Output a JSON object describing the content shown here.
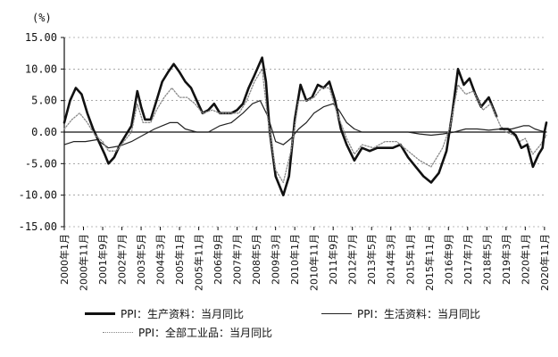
{
  "chart_data": {
    "type": "line",
    "unit_label": "(%)",
    "yticks": [
      "15.00",
      "10.00",
      "5.00",
      "0.00",
      "-5.00",
      "-10.00",
      "-15.00"
    ],
    "ylim": [
      -15,
      15
    ],
    "x_start": "2000-01",
    "x_end": "2020-12",
    "xticks": [
      {
        "label": "2000年1月",
        "date": "2000-01"
      },
      {
        "label": "2000年11月",
        "date": "2000-11"
      },
      {
        "label": "2001年9月",
        "date": "2001-09"
      },
      {
        "label": "2002年7月",
        "date": "2002-07"
      },
      {
        "label": "2003年5月",
        "date": "2003-05"
      },
      {
        "label": "2004年3月",
        "date": "2004-03"
      },
      {
        "label": "2005年1月",
        "date": "2005-01"
      },
      {
        "label": "2005年11月",
        "date": "2005-11"
      },
      {
        "label": "2006年9月",
        "date": "2006-09"
      },
      {
        "label": "2007年7月",
        "date": "2007-07"
      },
      {
        "label": "2008年5月",
        "date": "2008-05"
      },
      {
        "label": "2009年3月",
        "date": "2009-03"
      },
      {
        "label": "2010年1月",
        "date": "2010-01"
      },
      {
        "label": "2010年11月",
        "date": "2010-11"
      },
      {
        "label": "2011年9月",
        "date": "2011-09"
      },
      {
        "label": "2012年7月",
        "date": "2012-07"
      },
      {
        "label": "2013年5月",
        "date": "2013-05"
      },
      {
        "label": "2014年3月",
        "date": "2014-03"
      },
      {
        "label": "2015年1月",
        "date": "2015-01"
      },
      {
        "label": "2015年11月",
        "date": "2015-11"
      },
      {
        "label": "2016年9月",
        "date": "2016-09"
      },
      {
        "label": "2017年7月",
        "date": "2017-07"
      },
      {
        "label": "2018年5月",
        "date": "2018-05"
      },
      {
        "label": "2019年3月",
        "date": "2019-03"
      },
      {
        "label": "2020年1月",
        "date": "2020-01"
      },
      {
        "label": "2020年11月",
        "date": "2020-11"
      }
    ],
    "series": [
      {
        "name": "PPI：生产资料：当月同比",
        "style": "thick",
        "color": "#111111",
        "points": [
          [
            "2000-01",
            1.5
          ],
          [
            "2000-04",
            5.0
          ],
          [
            "2000-07",
            7.0
          ],
          [
            "2000-10",
            6.0
          ],
          [
            "2001-01",
            3.0
          ],
          [
            "2001-04",
            0.5
          ],
          [
            "2001-07",
            -1.5
          ],
          [
            "2001-10",
            -3.5
          ],
          [
            "2001-12",
            -5.0
          ],
          [
            "2002-03",
            -4.0
          ],
          [
            "2002-06",
            -2.0
          ],
          [
            "2002-09",
            -0.5
          ],
          [
            "2002-12",
            1.0
          ],
          [
            "2003-03",
            6.5
          ],
          [
            "2003-05",
            4.0
          ],
          [
            "2003-07",
            2.0
          ],
          [
            "2003-10",
            2.0
          ],
          [
            "2004-01",
            5.0
          ],
          [
            "2004-04",
            8.0
          ],
          [
            "2004-07",
            9.5
          ],
          [
            "2004-10",
            10.8
          ],
          [
            "2005-01",
            9.5
          ],
          [
            "2005-04",
            8.0
          ],
          [
            "2005-07",
            7.0
          ],
          [
            "2005-10",
            5.0
          ],
          [
            "2006-01",
            3.0
          ],
          [
            "2006-04",
            3.5
          ],
          [
            "2006-07",
            4.5
          ],
          [
            "2006-10",
            3.0
          ],
          [
            "2007-01",
            3.0
          ],
          [
            "2007-04",
            3.0
          ],
          [
            "2007-07",
            3.5
          ],
          [
            "2007-10",
            4.5
          ],
          [
            "2008-01",
            7.0
          ],
          [
            "2008-04",
            9.0
          ],
          [
            "2008-08",
            11.8
          ],
          [
            "2008-10",
            8.0
          ],
          [
            "2008-12",
            0.0
          ],
          [
            "2009-03",
            -7.0
          ],
          [
            "2009-07",
            -10.0
          ],
          [
            "2009-10",
            -7.0
          ],
          [
            "2010-01",
            2.0
          ],
          [
            "2010-04",
            7.5
          ],
          [
            "2010-07",
            5.0
          ],
          [
            "2010-10",
            5.5
          ],
          [
            "2011-01",
            7.5
          ],
          [
            "2011-04",
            7.0
          ],
          [
            "2011-07",
            8.0
          ],
          [
            "2011-10",
            5.0
          ],
          [
            "2012-01",
            0.5
          ],
          [
            "2012-04",
            -2.0
          ],
          [
            "2012-08",
            -4.5
          ],
          [
            "2012-12",
            -2.5
          ],
          [
            "2013-04",
            -3.0
          ],
          [
            "2013-08",
            -2.5
          ],
          [
            "2013-12",
            -2.5
          ],
          [
            "2014-04",
            -2.5
          ],
          [
            "2014-08",
            -2.0
          ],
          [
            "2014-12",
            -4.0
          ],
          [
            "2015-04",
            -5.5
          ],
          [
            "2015-08",
            -7.0
          ],
          [
            "2015-12",
            -8.0
          ],
          [
            "2016-04",
            -6.5
          ],
          [
            "2016-08",
            -3.0
          ],
          [
            "2016-11",
            3.0
          ],
          [
            "2017-02",
            10.0
          ],
          [
            "2017-05",
            7.5
          ],
          [
            "2017-08",
            8.5
          ],
          [
            "2017-11",
            6.0
          ],
          [
            "2018-02",
            4.0
          ],
          [
            "2018-06",
            5.5
          ],
          [
            "2018-10",
            2.5
          ]
        ]
      },
      {
        "name": "PPI：生活资料：当月同比",
        "style": "thin",
        "color": "#222222",
        "points": [
          [
            "2000-01",
            -2.0
          ],
          [
            "2000-06",
            -1.5
          ],
          [
            "2000-12",
            -1.5
          ],
          [
            "2001-06",
            -1.2
          ],
          [
            "2001-12",
            -2.5
          ],
          [
            "2002-06",
            -2.2
          ],
          [
            "2002-12",
            -1.5
          ],
          [
            "2003-06",
            -0.5
          ],
          [
            "2003-12",
            0.5
          ],
          [
            "2004-04",
            1.0
          ],
          [
            "2004-08",
            1.5
          ],
          [
            "2004-12",
            1.5
          ],
          [
            "2005-04",
            0.5
          ],
          [
            "2005-10",
            0.0
          ],
          [
            "2006-04",
            0.0
          ],
          [
            "2006-10",
            1.0
          ],
          [
            "2007-04",
            1.5
          ],
          [
            "2007-10",
            3.0
          ],
          [
            "2008-03",
            4.5
          ],
          [
            "2008-07",
            5.0
          ],
          [
            "2008-11",
            2.5
          ],
          [
            "2009-03",
            -1.5
          ],
          [
            "2009-07",
            -2.0
          ],
          [
            "2009-11",
            -1.0
          ],
          [
            "2010-03",
            0.5
          ],
          [
            "2010-07",
            1.5
          ],
          [
            "2010-11",
            3.0
          ],
          [
            "2011-04",
            4.0
          ],
          [
            "2011-09",
            4.5
          ],
          [
            "2011-12",
            3.5
          ],
          [
            "2012-04",
            1.5
          ],
          [
            "2012-08",
            0.5
          ],
          [
            "2012-12",
            0.0
          ],
          [
            "2013-06",
            0.0
          ],
          [
            "2013-12",
            0.0
          ],
          [
            "2014-06",
            0.0
          ],
          [
            "2014-12",
            0.0
          ],
          [
            "2015-06",
            -0.3
          ],
          [
            "2015-12",
            -0.5
          ],
          [
            "2016-06",
            -0.3
          ],
          [
            "2016-12",
            0.0
          ],
          [
            "2017-06",
            0.5
          ],
          [
            "2017-12",
            0.5
          ],
          [
            "2018-06",
            0.3
          ],
          [
            "2018-12",
            0.5
          ],
          [
            "2019-06",
            0.5
          ],
          [
            "2019-12",
            1.0
          ],
          [
            "2020-03",
            1.0
          ],
          [
            "2020-06",
            0.5
          ],
          [
            "2020-09",
            0.2
          ],
          [
            "2020-12",
            0.0
          ]
        ]
      },
      {
        "name": "PPI：全部工业品：当月同比",
        "style": "dotted",
        "color": "#888888",
        "points": [
          [
            "2000-01",
            0.5
          ],
          [
            "2000-05",
            2.0
          ],
          [
            "2000-09",
            3.0
          ],
          [
            "2001-01",
            1.5
          ],
          [
            "2001-05",
            -0.5
          ],
          [
            "2001-09",
            -1.5
          ],
          [
            "2001-12",
            -3.0
          ],
          [
            "2002-04",
            -3.0
          ],
          [
            "2002-08",
            -1.5
          ],
          [
            "2002-12",
            0.0
          ],
          [
            "2003-03",
            4.5
          ],
          [
            "2003-06",
            1.5
          ],
          [
            "2003-10",
            1.5
          ],
          [
            "2004-01",
            3.5
          ],
          [
            "2004-05",
            5.5
          ],
          [
            "2004-09",
            7.0
          ],
          [
            "2005-01",
            5.5
          ],
          [
            "2005-05",
            5.5
          ],
          [
            "2005-09",
            4.5
          ],
          [
            "2006-01",
            3.0
          ],
          [
            "2006-06",
            3.5
          ],
          [
            "2006-10",
            3.0
          ],
          [
            "2007-03",
            3.0
          ],
          [
            "2007-08",
            3.0
          ],
          [
            "2007-12",
            5.0
          ],
          [
            "2008-04",
            8.0
          ],
          [
            "2008-08",
            10.0
          ],
          [
            "2008-11",
            2.0
          ],
          [
            "2009-03",
            -6.0
          ],
          [
            "2009-07",
            -8.0
          ],
          [
            "2009-11",
            -3.0
          ],
          [
            "2010-03",
            5.0
          ],
          [
            "2010-07",
            5.0
          ],
          [
            "2010-11",
            5.5
          ],
          [
            "2011-03",
            7.0
          ],
          [
            "2011-07",
            7.0
          ],
          [
            "2011-11",
            3.0
          ],
          [
            "2012-04",
            -1.0
          ],
          [
            "2012-08",
            -3.5
          ],
          [
            "2012-12",
            -2.0
          ],
          [
            "2013-06",
            -2.5
          ],
          [
            "2013-12",
            -1.5
          ],
          [
            "2014-06",
            -1.5
          ],
          [
            "2014-12",
            -3.0
          ],
          [
            "2015-06",
            -4.5
          ],
          [
            "2015-12",
            -5.5
          ],
          [
            "2016-06",
            -2.5
          ],
          [
            "2016-10",
            1.0
          ],
          [
            "2017-02",
            7.5
          ],
          [
            "2017-06",
            6.0
          ],
          [
            "2017-10",
            6.5
          ],
          [
            "2018-03",
            3.5
          ],
          [
            "2018-07",
            4.5
          ],
          [
            "2018-12",
            1.0
          ],
          [
            "2019-03",
            0.0
          ],
          [
            "2019-07",
            -0.5
          ],
          [
            "2019-10",
            -1.5
          ],
          [
            "2020-01",
            -1.0
          ],
          [
            "2020-05",
            -3.5
          ],
          [
            "2020-09",
            -2.0
          ],
          [
            "2020-12",
            -0.5
          ]
        ]
      },
      {
        "name": "",
        "style": "thick",
        "color": "#111111",
        "points": [
          [
            "2018-12",
            0.5
          ],
          [
            "2019-04",
            0.5
          ],
          [
            "2019-08",
            -0.5
          ],
          [
            "2019-11",
            -2.5
          ],
          [
            "2020-02",
            -2.0
          ],
          [
            "2020-05",
            -5.5
          ],
          [
            "2020-08",
            -3.5
          ],
          [
            "2020-10",
            -2.5
          ],
          [
            "2020-11",
            0.0
          ],
          [
            "2020-12",
            1.5
          ]
        ]
      }
    ]
  }
}
